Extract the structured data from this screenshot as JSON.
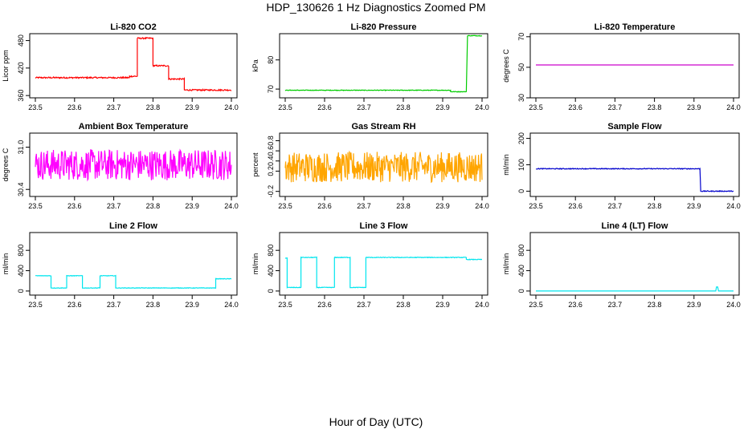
{
  "title": "HDP_130626  1 Hz Diagnostics Zoomed PM",
  "xlabel": "Hour of Day (UTC)",
  "chart_data": [
    {
      "type": "line",
      "title": "Li-820 CO2",
      "ylabel": "Licor ppm",
      "color": "#ff0000",
      "xlim": [
        23.5,
        24.0
      ],
      "ylim": [
        355,
        495
      ],
      "xticks": [
        "23.5",
        "23.6",
        "23.7",
        "23.8",
        "23.9",
        "24.0"
      ],
      "yticks": [
        "360",
        "420",
        "480"
      ],
      "segments": [
        [
          23.5,
          23.74,
          399
        ],
        [
          23.74,
          23.76,
          402
        ],
        [
          23.76,
          23.8,
          485
        ],
        [
          23.8,
          23.84,
          425
        ],
        [
          23.84,
          23.88,
          396
        ],
        [
          23.88,
          24.0,
          372
        ]
      ],
      "noise": 1.5
    },
    {
      "type": "line",
      "title": "Li-820 Pressure",
      "ylabel": "kPa",
      "color": "#00cc00",
      "xlim": [
        23.5,
        24.0
      ],
      "ylim": [
        67,
        89
      ],
      "xticks": [
        "23.5",
        "23.6",
        "23.7",
        "23.8",
        "23.9",
        "24.0"
      ],
      "yticks": [
        "70",
        "80"
      ],
      "segments": [
        [
          23.5,
          23.92,
          69.6
        ],
        [
          23.92,
          23.96,
          69.1
        ],
        [
          23.963,
          24.0,
          88.3
        ]
      ],
      "noise": 0.1
    },
    {
      "type": "line",
      "title": "Li-820 Temperature",
      "ylabel": "degrees C",
      "color": "#cc00cc",
      "xlim": [
        23.5,
        24.0
      ],
      "ylim": [
        30,
        72
      ],
      "xticks": [
        "23.5",
        "23.6",
        "23.7",
        "23.8",
        "23.9",
        "24.0"
      ],
      "yticks": [
        "30",
        "50",
        "70"
      ],
      "segments": [
        [
          23.5,
          24.0,
          51.5
        ]
      ],
      "noise": 0
    },
    {
      "type": "line",
      "title": "Ambient Box Temperature",
      "ylabel": "degrees C",
      "color": "#ff00ff",
      "xlim": [
        23.5,
        24.0
      ],
      "ylim": [
        30.3,
        31.2
      ],
      "xticks": [
        "23.5",
        "23.6",
        "23.7",
        "23.8",
        "23.9",
        "24.0"
      ],
      "yticks": [
        "30.4",
        "31.0"
      ],
      "segments": [
        [
          23.5,
          24.0,
          30.75
        ]
      ],
      "noise": 0.22
    },
    {
      "type": "line",
      "title": "Gas Stream RH",
      "ylabel": "percent",
      "color": "#ffa500",
      "xlim": [
        23.5,
        24.0
      ],
      "ylim": [
        -0.3,
        0.95
      ],
      "xticks": [
        "23.5",
        "23.6",
        "23.7",
        "23.8",
        "23.9",
        "24.0"
      ],
      "yticks": [
        "-0.2",
        "0.2",
        "0.4",
        "0.6",
        "0.8"
      ],
      "segments": [
        [
          23.5,
          24.0,
          0.28
        ]
      ],
      "noise": 0.3
    },
    {
      "type": "line",
      "title": "Sample Flow",
      "ylabel": "ml/min",
      "color": "#0000cc",
      "xlim": [
        23.5,
        24.0
      ],
      "ylim": [
        -20,
        220
      ],
      "xticks": [
        "23.5",
        "23.6",
        "23.7",
        "23.8",
        "23.9",
        "24.0"
      ],
      "yticks": [
        "0",
        "100",
        "200"
      ],
      "segments": [
        [
          23.5,
          23.915,
          85
        ],
        [
          23.917,
          24.0,
          0
        ]
      ],
      "noise": 1.5
    },
    {
      "type": "line",
      "title": "Line 2 Flow",
      "ylabel": "ml/min",
      "color": "#00e5ee",
      "xlim": [
        23.5,
        24.0
      ],
      "ylim": [
        -80,
        1150
      ],
      "xticks": [
        "23.5",
        "23.6",
        "23.7",
        "23.8",
        "23.9",
        "24.0"
      ],
      "yticks": [
        "0",
        "400",
        "800"
      ],
      "segments": [
        [
          23.5,
          23.54,
          300
        ],
        [
          23.54,
          23.58,
          60
        ],
        [
          23.58,
          23.62,
          300
        ],
        [
          23.62,
          23.665,
          60
        ],
        [
          23.665,
          23.705,
          300
        ],
        [
          23.705,
          23.96,
          60
        ],
        [
          23.96,
          24.0,
          240
        ]
      ],
      "noise": 5
    },
    {
      "type": "line",
      "title": "Line 3 Flow",
      "ylabel": "ml/min",
      "color": "#00e5ee",
      "xlim": [
        23.5,
        24.0
      ],
      "ylim": [
        -80,
        1150
      ],
      "xticks": [
        "23.5",
        "23.6",
        "23.7",
        "23.8",
        "23.9",
        "24.0"
      ],
      "yticks": [
        "0",
        "400",
        "800"
      ],
      "segments": [
        [
          23.5,
          23.505,
          650
        ],
        [
          23.505,
          23.54,
          70
        ],
        [
          23.54,
          23.58,
          660
        ],
        [
          23.58,
          23.625,
          70
        ],
        [
          23.625,
          23.665,
          660
        ],
        [
          23.665,
          23.705,
          70
        ],
        [
          23.705,
          23.96,
          660
        ],
        [
          23.96,
          24.0,
          620
        ]
      ],
      "noise": 6
    },
    {
      "type": "line",
      "title": "Line 4 (LT) Flow",
      "ylabel": "ml/min",
      "color": "#00e5ee",
      "xlim": [
        23.5,
        24.0
      ],
      "ylim": [
        -80,
        1150
      ],
      "xticks": [
        "23.5",
        "23.6",
        "23.7",
        "23.8",
        "23.9",
        "24.0"
      ],
      "yticks": [
        "0",
        "400",
        "800"
      ],
      "segments": [
        [
          23.5,
          23.955,
          0
        ],
        [
          23.957,
          23.96,
          80
        ],
        [
          23.962,
          24.0,
          0
        ]
      ],
      "noise": 0
    }
  ]
}
